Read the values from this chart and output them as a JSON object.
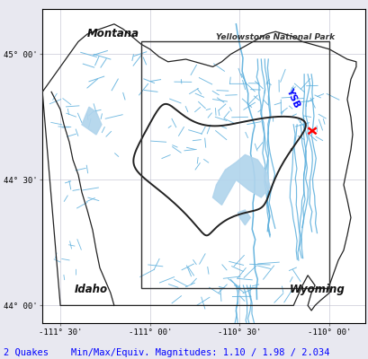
{
  "xlim": [
    -111.6,
    -109.8
  ],
  "ylim": [
    43.93,
    45.18
  ],
  "xticks": [
    -111.5,
    -111.0,
    -110.5,
    -110.0
  ],
  "yticks": [
    44.0,
    44.5,
    45.0
  ],
  "xtick_labels": [
    "-111° 30'",
    "-111° 00'",
    "-110° 30'",
    "-110° 00'"
  ],
  "ytick_labels": [
    "44° 00'",
    "44° 30'",
    "45° 00'"
  ],
  "background_color": "#e8e8f0",
  "map_bg_color": "#ffffff",
  "river_color": "#5aaedc",
  "lake_color": "#b0d4ec",
  "caldera_color": "#222222",
  "border_color": "#222222",
  "park_label": "Yellowstone National Park",
  "montana_label": "Montana",
  "idaho_label": "Idaho",
  "wyoming_label": "Wyoming",
  "ysb_label": "YSB",
  "status_text": "2 Quakes    Min/Max/Equiv. Magnitudes: 1.10 / 1.98 / 2.034",
  "status_color": "#0000ff",
  "grid_color": "#bbbbcc"
}
